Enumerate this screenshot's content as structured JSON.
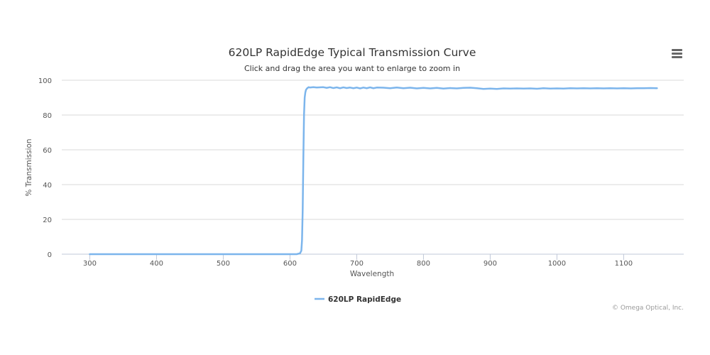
{
  "chart_data": {
    "type": "line",
    "title": "620LP RapidEdge Typical Transmission Curve",
    "subtitle": "Click and drag the area you want to enlarge to zoom in",
    "xlabel": "Wavelength",
    "ylabel": "% Transmission",
    "xlim": [
      258,
      1190
    ],
    "ylim": [
      0,
      100
    ],
    "xticks": [
      300,
      400,
      500,
      600,
      700,
      800,
      900,
      1000,
      1100
    ],
    "yticks": [
      0,
      20,
      40,
      60,
      80,
      100
    ],
    "grid": true,
    "legend_position": "bottom-center",
    "credits": "© Omega Optical, Inc.",
    "series": [
      {
        "name": "620LP RapidEdge",
        "color": "#7cb5ec",
        "x": [
          300,
          350,
          400,
          450,
          500,
          550,
          600,
          610,
          615,
          617,
          618,
          619,
          620,
          621,
          622,
          623,
          624,
          626,
          628,
          630,
          635,
          640,
          645,
          650,
          655,
          660,
          665,
          670,
          675,
          680,
          685,
          690,
          695,
          700,
          705,
          710,
          715,
          720,
          725,
          730,
          740,
          750,
          760,
          770,
          780,
          790,
          800,
          810,
          820,
          830,
          840,
          850,
          860,
          870,
          880,
          890,
          900,
          910,
          920,
          930,
          940,
          950,
          960,
          970,
          980,
          990,
          1000,
          1010,
          1020,
          1030,
          1040,
          1050,
          1060,
          1070,
          1080,
          1090,
          1100,
          1110,
          1120,
          1130,
          1140,
          1150
        ],
        "y": [
          0,
          0,
          0,
          0,
          0,
          0,
          0,
          0,
          0.5,
          2,
          8,
          25,
          55,
          80,
          90,
          93,
          94.5,
          95.5,
          96,
          95.8,
          96,
          95.8,
          95.9,
          96,
          95.6,
          96,
          95.5,
          95.9,
          95.4,
          95.9,
          95.5,
          95.8,
          95.4,
          95.8,
          95.3,
          95.8,
          95.4,
          95.9,
          95.4,
          95.8,
          95.7,
          95.4,
          95.8,
          95.4,
          95.7,
          95.3,
          95.6,
          95.3,
          95.6,
          95.2,
          95.5,
          95.3,
          95.6,
          95.7,
          95.4,
          95.0,
          95.2,
          95.0,
          95.3,
          95.2,
          95.3,
          95.2,
          95.3,
          95.1,
          95.4,
          95.2,
          95.3,
          95.2,
          95.4,
          95.3,
          95.4,
          95.3,
          95.4,
          95.3,
          95.4,
          95.3,
          95.4,
          95.3,
          95.4,
          95.4,
          95.5,
          95.4
        ]
      }
    ]
  },
  "menu_icon": "hamburger-menu-icon"
}
